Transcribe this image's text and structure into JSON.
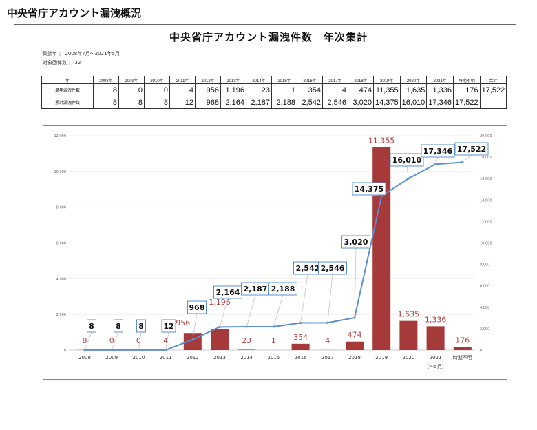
{
  "page_title": "中央省庁アカウント漏洩概況",
  "report": {
    "title": "中央省庁アカウント漏洩件数　年次集計",
    "period": "集計年 ： 2008年7月～2021年5月",
    "orgs": "対象団体数 ： 32"
  },
  "table": {
    "header": [
      "年",
      "2008年",
      "2009年",
      "2010年",
      "2011年",
      "2012年",
      "2013年",
      "2014年",
      "2015年",
      "2016年",
      "2017年",
      "2018年",
      "2019年",
      "2020年",
      "2021年",
      "時期不明",
      "合計"
    ],
    "rows": [
      [
        "単年漏洩件数",
        "8",
        "0",
        "0",
        "4",
        "956",
        "1,196",
        "23",
        "1",
        "354",
        "4",
        "474",
        "11,355",
        "1,635",
        "1,336",
        "176",
        "17,522"
      ],
      [
        "累計漏洩件数",
        "8",
        "8",
        "8",
        "12",
        "968",
        "2,164",
        "2,187",
        "2,188",
        "2,542",
        "2,546",
        "3,020",
        "14,375",
        "16,010",
        "17,346",
        "17,522",
        ""
      ]
    ]
  },
  "chart_data": {
    "type": "bar+line",
    "categories": [
      "2008",
      "2009",
      "2010",
      "2011",
      "2012",
      "2013",
      "2014",
      "2015",
      "2016",
      "2017",
      "2018",
      "2019",
      "2020",
      "2021",
      "時期不明"
    ],
    "category_sublabels": {
      "2021": "（～5月）"
    },
    "series": [
      {
        "type": "bar",
        "axis": "left",
        "color": "#a63a3a",
        "values": [
          8,
          0,
          0,
          4,
          956,
          1196,
          23,
          1,
          354,
          4,
          474,
          11355,
          1635,
          1336,
          176
        ],
        "labels": [
          "8",
          "0",
          "0",
          "4",
          "956",
          "1,196",
          "23",
          "1",
          "354",
          "4",
          "474",
          "11,355",
          "1,635",
          "1,336",
          "176"
        ]
      },
      {
        "type": "line",
        "axis": "right",
        "color": "#5b8fd0",
        "values": [
          8,
          8,
          8,
          12,
          968,
          2164,
          2187,
          2188,
          2542,
          2546,
          3020,
          14375,
          16010,
          17346,
          17522
        ],
        "labels": [
          "8",
          "8",
          "8",
          "12",
          "968",
          "2,164",
          "2,187",
          "2,188",
          "2,542",
          "2,546",
          "3,020",
          "14,375",
          "16,010",
          "17,346",
          "17,522"
        ]
      }
    ],
    "left_axis": {
      "ylim": [
        0,
        12000
      ],
      "ticks": [
        "0",
        "2,000",
        "4,000",
        "6,000",
        "8,000",
        "10,000",
        "12,000"
      ]
    },
    "right_axis": {
      "ylim": [
        0,
        20000
      ],
      "ticks": [
        "0",
        "2,000",
        "4,000",
        "6,000",
        "8,000",
        "10,000",
        "12,000",
        "14,000",
        "16,000",
        "18,000",
        "20,000"
      ]
    },
    "grid": true,
    "legend": "none"
  }
}
